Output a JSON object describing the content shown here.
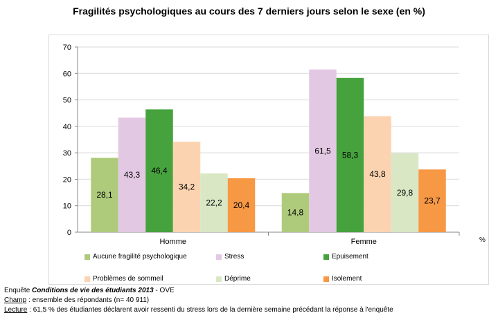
{
  "chart_data": {
    "type": "bar",
    "title": "Fragilités psychologiques  au cours des 7 derniers jours selon le sexe (en %)",
    "unit_label": "%",
    "categories": [
      "Homme",
      "Femme"
    ],
    "ylim": [
      0,
      70
    ],
    "yticks": [
      "0",
      "10",
      "20",
      "30",
      "40",
      "50",
      "60",
      "70"
    ],
    "grid": true,
    "legend_position": "bottom",
    "series": [
      {
        "name": "Aucune fragilité psychologique",
        "color": "#aecb7b",
        "values": [
          28.1,
          14.8
        ],
        "labels": [
          "28,1",
          "14,8"
        ]
      },
      {
        "name": "Stress",
        "color": "#e3c8e3",
        "values": [
          43.3,
          61.5
        ],
        "labels": [
          "43,3",
          "61,5"
        ]
      },
      {
        "name": "Epuisement",
        "color": "#46a23d",
        "values": [
          46.4,
          58.3
        ],
        "labels": [
          "46,4",
          "58,3"
        ]
      },
      {
        "name": "Problèmes de sommeil",
        "color": "#fcd3b0",
        "values": [
          34.2,
          43.8
        ],
        "labels": [
          "34,2",
          "43,8"
        ]
      },
      {
        "name": "Déprime",
        "color": "#d9e7c5",
        "values": [
          22.2,
          29.8
        ],
        "labels": [
          "22,2",
          "29,8"
        ]
      },
      {
        "name": "Isolement",
        "color": "#f79845",
        "values": [
          20.4,
          23.7
        ],
        "labels": [
          "20,4",
          "23,7"
        ]
      }
    ]
  },
  "footer": {
    "line1_prefix": "Enquête ",
    "line1_bold": "Conditions de vie des étudiants 2013",
    "line1_suffix": " - OVE",
    "champ_label": "Champ",
    "champ_text": " : ensemble des répondants (n= 40 911)",
    "lecture_label": "Lecture",
    "lecture_text": " : 61,5 % des étudiantes déclarent avoir ressenti du stress lors de la dernière semaine précédant la réponse à l'enquête"
  }
}
